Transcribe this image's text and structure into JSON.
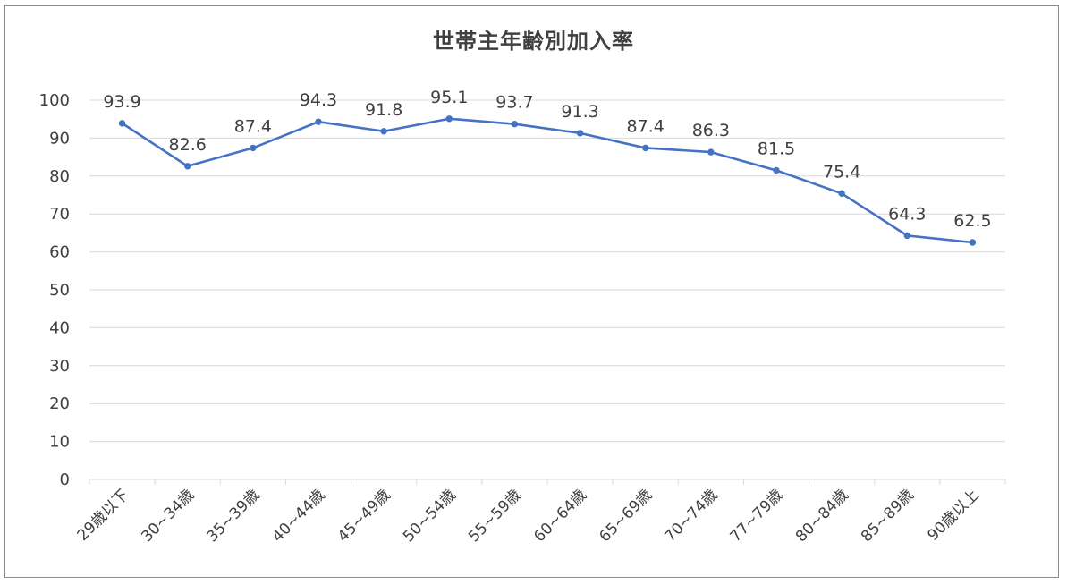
{
  "chart_data": {
    "type": "line",
    "title": "世帯主年齢別加入率",
    "xlabel": "",
    "ylabel": "",
    "ylim": [
      0,
      100
    ],
    "yticks": [
      0,
      10,
      20,
      30,
      40,
      50,
      60,
      70,
      80,
      90,
      100
    ],
    "grid": true,
    "legend": "none",
    "categories": [
      "29歳以下",
      "30~34歳",
      "35~39歳",
      "40~44歳",
      "45~49歳",
      "50~54歳",
      "55~59歳",
      "60~64歳",
      "65~69歳",
      "70~74歳",
      "77~79歳",
      "80~84歳",
      "85~89歳",
      "90歳以上"
    ],
    "series": [
      {
        "values": [
          93.9,
          82.6,
          87.4,
          94.3,
          91.8,
          95.1,
          93.7,
          91.3,
          87.4,
          86.3,
          81.5,
          75.4,
          64.3,
          62.5
        ],
        "color": "#4472c4"
      }
    ],
    "gridline_color": "#d9d9d9",
    "text_color": "#404040"
  }
}
